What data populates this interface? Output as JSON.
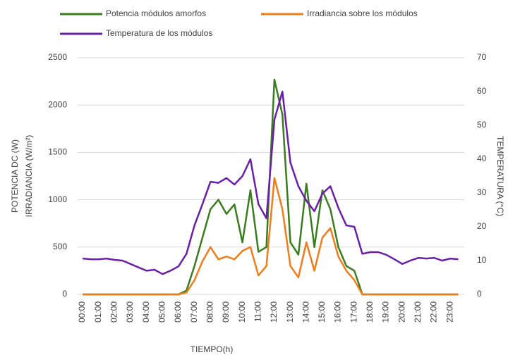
{
  "chart_data": {
    "type": "line",
    "x_label": "TIEMPO(h)",
    "y_label": [
      "POTENCIA DC (W)",
      "IRRADIANCIA  (W/m²)"
    ],
    "y2_label": "TEMPERATURA (°C)",
    "categories": [
      "00:00",
      null,
      "01:00",
      null,
      "02:00",
      null,
      "03:00",
      null,
      "04:00",
      null,
      "05:00",
      null,
      "06:00",
      null,
      "07:00",
      null,
      "08:00",
      null,
      "09:00",
      null,
      "10:00",
      null,
      "11:00",
      null,
      "12:00",
      null,
      "13:00",
      null,
      "14:00",
      null,
      "15:00",
      null,
      "16:00",
      null,
      "17:00",
      null,
      "18:00",
      null,
      "19:00",
      null,
      "20:00",
      null,
      "21:00",
      null,
      "22:00",
      null,
      "23:00",
      null
    ],
    "series": [
      {
        "name": "Potencia módulos amorfos",
        "color": "#3a7d1e",
        "values": [
          0,
          0,
          0,
          0,
          0,
          0,
          0,
          0,
          0,
          0,
          0,
          0,
          0,
          40,
          300,
          600,
          900,
          1000,
          850,
          950,
          550,
          1100,
          450,
          500,
          2270,
          1900,
          550,
          420,
          1170,
          500,
          1100,
          900,
          500,
          300,
          250,
          0,
          0,
          0,
          0,
          0,
          0,
          0,
          0,
          0,
          0,
          0,
          0,
          0
        ]
      },
      {
        "name": "Irradiancia sobre los módulos",
        "color": "#f07d1a",
        "values": [
          0,
          0,
          0,
          0,
          0,
          0,
          0,
          0,
          0,
          0,
          0,
          0,
          0,
          20,
          150,
          350,
          500,
          370,
          400,
          370,
          460,
          500,
          200,
          300,
          1230,
          900,
          300,
          180,
          550,
          250,
          600,
          700,
          400,
          250,
          150,
          0,
          0,
          0,
          0,
          0,
          0,
          0,
          0,
          0,
          0,
          0,
          0,
          0
        ]
      },
      {
        "name": "Temperatura de los módulos",
        "color": "#6a1fa8",
        "axis": "y2",
        "values": [
          10.6,
          10.4,
          10.4,
          10.6,
          10.2,
          10,
          9,
          8,
          7,
          7.3,
          6,
          7,
          8.3,
          12,
          20.4,
          26.7,
          33.3,
          33,
          34.4,
          32.5,
          35,
          40,
          26.7,
          22.5,
          51.7,
          60,
          39,
          32,
          27.7,
          24.6,
          29.8,
          32,
          25.6,
          20.4,
          20,
          12,
          12.5,
          12.5,
          11.7,
          10.4,
          9,
          10,
          10.8,
          10.6,
          10.8,
          10,
          10.6,
          10.4
        ]
      }
    ],
    "ylim": [
      0,
      2500
    ],
    "yticks": [
      0,
      500,
      1000,
      1500,
      2000,
      2500
    ],
    "y2lim": [
      0,
      70
    ],
    "y2ticks": [
      0,
      10,
      20,
      30,
      40,
      50,
      60,
      70
    ],
    "grid": true,
    "legend": "top"
  }
}
